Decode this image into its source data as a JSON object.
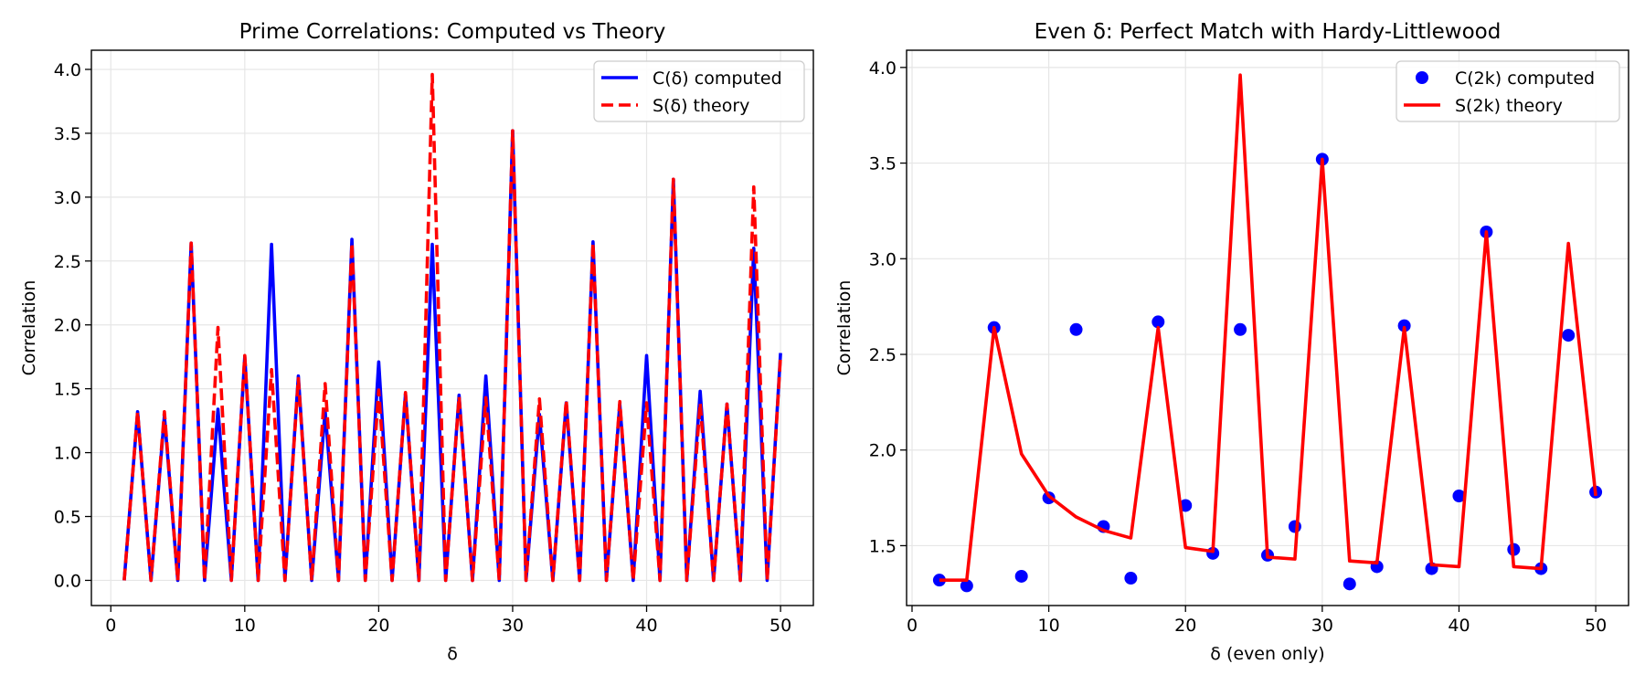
{
  "chart_data": [
    {
      "type": "line",
      "title": "Prime Correlations: Computed vs Theory",
      "xlabel": "δ",
      "ylabel": "Correlation",
      "xlim": [
        -1.45,
        52.45
      ],
      "ylim": [
        -0.197,
        4.15
      ],
      "xticks": [
        0,
        10,
        20,
        30,
        40,
        50
      ],
      "xtick_labels": [
        "0",
        "10",
        "20",
        "30",
        "40",
        "50"
      ],
      "yticks": [
        0.0,
        0.5,
        1.0,
        1.5,
        2.0,
        2.5,
        3.0,
        3.5,
        4.0
      ],
      "ytick_labels": [
        "0.0",
        "0.5",
        "1.0",
        "1.5",
        "2.0",
        "2.5",
        "3.0",
        "3.5",
        "4.0"
      ],
      "grid": true,
      "legend_position": "top-right",
      "x": [
        1,
        2,
        3,
        4,
        5,
        6,
        7,
        8,
        9,
        10,
        11,
        12,
        13,
        14,
        15,
        16,
        17,
        18,
        19,
        20,
        21,
        22,
        23,
        24,
        25,
        26,
        27,
        28,
        29,
        30,
        31,
        32,
        33,
        34,
        35,
        36,
        37,
        38,
        39,
        40,
        41,
        42,
        43,
        44,
        45,
        46,
        47,
        48,
        49,
        50
      ],
      "series": [
        {
          "name": "C(δ) computed",
          "color": "#0000ff",
          "style": "solid",
          "values": [
            0,
            1.32,
            0,
            1.29,
            0,
            2.64,
            0,
            1.34,
            0,
            1.75,
            0,
            2.63,
            0,
            1.6,
            0,
            1.33,
            0,
            2.67,
            0,
            1.71,
            0,
            1.46,
            0,
            2.63,
            0,
            1.45,
            0,
            1.6,
            0,
            3.52,
            0,
            1.3,
            0,
            1.39,
            0,
            2.65,
            0,
            1.38,
            0,
            1.76,
            0,
            3.14,
            0,
            1.48,
            0,
            1.38,
            0,
            2.6,
            0,
            1.78
          ]
        },
        {
          "name": "S(δ) theory",
          "color": "#ff0000",
          "style": "dashed",
          "values": [
            0,
            1.32,
            0,
            1.32,
            0,
            2.64,
            0,
            1.98,
            0,
            1.76,
            0,
            1.65,
            0,
            1.58,
            0,
            1.54,
            0,
            2.64,
            0,
            1.49,
            0,
            1.47,
            0,
            3.96,
            0,
            1.44,
            0,
            1.43,
            0,
            3.52,
            0,
            1.42,
            0,
            1.41,
            0,
            2.64,
            0,
            1.4,
            0,
            1.39,
            0,
            3.14,
            0,
            1.39,
            0,
            1.38,
            0,
            3.08,
            0,
            1.76
          ]
        }
      ]
    },
    {
      "type": "scatter",
      "title": "Even δ: Perfect Match with Hardy-Littlewood",
      "xlabel": "δ (even only)",
      "ylabel": "Correlation",
      "xlim": [
        -0.4,
        52.4
      ],
      "ylim": [
        1.187,
        4.09
      ],
      "xticks": [
        0,
        10,
        20,
        30,
        40,
        50
      ],
      "xtick_labels": [
        "0",
        "10",
        "20",
        "30",
        "40",
        "50"
      ],
      "yticks": [
        1.5,
        2.0,
        2.5,
        3.0,
        3.5,
        4.0
      ],
      "ytick_labels": [
        "1.5",
        "2.0",
        "2.5",
        "3.0",
        "3.5",
        "4.0"
      ],
      "grid": true,
      "legend_position": "top-right",
      "x": [
        2,
        4,
        6,
        8,
        10,
        12,
        14,
        16,
        18,
        20,
        22,
        24,
        26,
        28,
        30,
        32,
        34,
        36,
        38,
        40,
        42,
        44,
        46,
        48,
        50
      ],
      "series": [
        {
          "name": "C(2k) computed",
          "color": "#0000ff",
          "kind": "scatter",
          "values": [
            1.32,
            1.29,
            2.64,
            1.34,
            1.75,
            2.63,
            1.6,
            1.33,
            2.67,
            1.71,
            1.46,
            2.63,
            1.45,
            1.6,
            3.52,
            1.3,
            1.39,
            2.65,
            1.38,
            1.76,
            3.14,
            1.48,
            1.38,
            2.6,
            1.78
          ]
        },
        {
          "name": "S(2k) theory",
          "color": "#ff0000",
          "kind": "line",
          "values": [
            1.32,
            1.32,
            2.64,
            1.98,
            1.76,
            1.65,
            1.58,
            1.54,
            2.64,
            1.49,
            1.47,
            3.96,
            1.44,
            1.43,
            3.52,
            1.42,
            1.41,
            2.64,
            1.4,
            1.39,
            3.14,
            1.39,
            1.38,
            3.08,
            1.76
          ]
        }
      ]
    }
  ]
}
